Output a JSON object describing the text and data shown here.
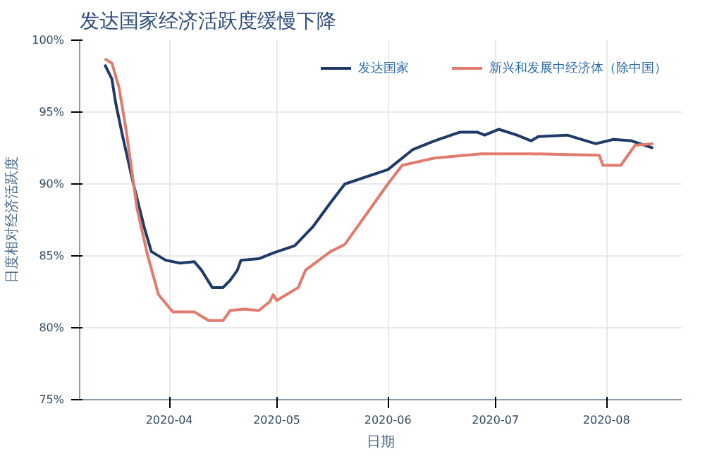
{
  "chart_data": {
    "type": "line",
    "title": "发达国家经济活跃度缓慢下降",
    "xlabel": "日期",
    "ylabel": "日度相对经济活跃度",
    "legend": "top right",
    "grid": true,
    "line_style": "solid",
    "marker": "none",
    "xlim": [
      "2020-03-07",
      "2020-08-22"
    ],
    "xticks": [
      {
        "value": "2020-04-01",
        "label": "2020-04"
      },
      {
        "value": "2020-05-01",
        "label": "2020-05"
      },
      {
        "value": "2020-06-01",
        "label": "2020-06"
      },
      {
        "value": "2020-07-01",
        "label": "2020-07"
      },
      {
        "value": "2020-08-01",
        "label": "2020-08"
      }
    ],
    "ylim": [
      75,
      100
    ],
    "yticks": [
      {
        "value": 75,
        "label": "75%"
      },
      {
        "value": 80,
        "label": "80%"
      },
      {
        "value": 85,
        "label": "85%"
      },
      {
        "value": 90,
        "label": "90%"
      },
      {
        "value": 95,
        "label": "95%"
      },
      {
        "value": 100,
        "label": "100%"
      }
    ],
    "series": [
      {
        "name": "发达国家",
        "color": "#1f3a68",
        "x": [
          "2020-03-14",
          "2020-03-16",
          "2020-03-17",
          "2020-03-19",
          "2020-03-22",
          "2020-03-25",
          "2020-03-27",
          "2020-03-31",
          "2020-04-04",
          "2020-04-08",
          "2020-04-10",
          "2020-04-13",
          "2020-04-16",
          "2020-04-18",
          "2020-04-20",
          "2020-04-21",
          "2020-04-26",
          "2020-04-30",
          "2020-05-06",
          "2020-05-11",
          "2020-05-16",
          "2020-05-20",
          "2020-06-01",
          "2020-06-08",
          "2020-06-14",
          "2020-06-21",
          "2020-06-26",
          "2020-06-28",
          "2020-07-02",
          "2020-07-07",
          "2020-07-11",
          "2020-07-13",
          "2020-07-21",
          "2020-07-29",
          "2020-08-03",
          "2020-08-08",
          "2020-08-14"
        ],
        "values": [
          98.3,
          97.3,
          95.7,
          93.3,
          90,
          87,
          85.3,
          84.7,
          84.5,
          84.6,
          84,
          82.8,
          82.8,
          83.3,
          84,
          84.7,
          84.8,
          85.2,
          85.7,
          87,
          88.7,
          90,
          91,
          92.4,
          93,
          93.6,
          93.6,
          93.4,
          93.8,
          93.4,
          93,
          93.3,
          93.4,
          92.8,
          93.1,
          93,
          92.5
        ]
      },
      {
        "name": "新兴和发展中经济体（除中国）",
        "color": "#e07b6e",
        "x": [
          "2020-03-14",
          "2020-03-16",
          "2020-03-18",
          "2020-03-20",
          "2020-03-23",
          "2020-03-26",
          "2020-03-29",
          "2020-04-02",
          "2020-04-08",
          "2020-04-12",
          "2020-04-16",
          "2020-04-18",
          "2020-04-22",
          "2020-04-26",
          "2020-04-29",
          "2020-04-30",
          "2020-05-01",
          "2020-05-07",
          "2020-05-09",
          "2020-05-16",
          "2020-05-20",
          "2020-06-01",
          "2020-06-05",
          "2020-06-14",
          "2020-06-27",
          "2020-07-11",
          "2020-07-30",
          "2020-07-31",
          "2020-08-05",
          "2020-08-09",
          "2020-08-14"
        ],
        "values": [
          98.7,
          98.4,
          96.7,
          93.7,
          88.3,
          85,
          82.3,
          81.1,
          81.1,
          80.5,
          80.5,
          81.2,
          81.3,
          81.2,
          81.8,
          82.3,
          81.9,
          82.8,
          84,
          85.3,
          85.8,
          90,
          91.3,
          91.8,
          92.1,
          92.1,
          92,
          91.3,
          91.3,
          92.7,
          92.8
        ]
      }
    ]
  }
}
